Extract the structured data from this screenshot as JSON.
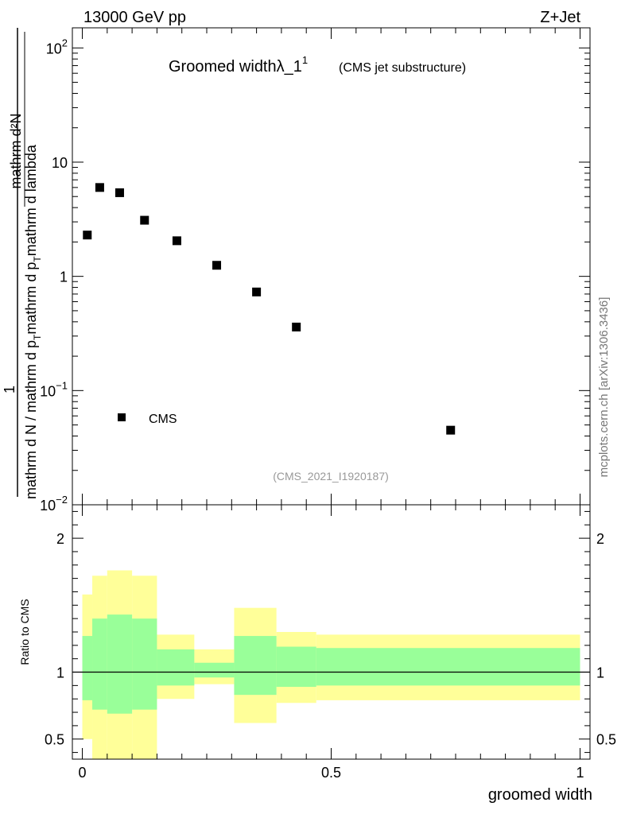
{
  "header": {
    "left_label": "13000 GeV pp",
    "right_label": "Z+Jet"
  },
  "side_label": "mcplots.cern.ch [arXiv:1306.3436]",
  "chart_data": [
    {
      "type": "scatter",
      "title": "Groomed widthλ_1",
      "title_superscript": "1",
      "subtitle": "(CMS jet substructure)",
      "analysis_label": "(CMS_2021_I1920187)",
      "yscale": "log",
      "ylim": [
        0.01,
        150
      ],
      "xlim": [
        -0.02,
        1.02
      ],
      "y_ticks": [
        {
          "value": 0.01,
          "base": "10",
          "exp": "−2"
        },
        {
          "value": 0.1,
          "base": "10",
          "exp": "−1"
        },
        {
          "value": 1,
          "base": "1",
          "exp": ""
        },
        {
          "value": 10,
          "base": "10",
          "exp": ""
        },
        {
          "value": 100,
          "base": "10",
          "exp": "2"
        }
      ],
      "ylabel_numerator": "mathrm d²N",
      "ylabel_denominator_line1": "mathrm d p",
      "ylabel_denominator_sub1": "T",
      "ylabel_denominator_line2": "mathrm d lambda",
      "ylabel_prefix_numerator": "1",
      "ylabel_prefix_denominator": "mathrm d N / mathrm d p",
      "ylabel_prefix_sub": "T",
      "ylabel_mid": "mathrm d p",
      "ylabel_mid_sub": "T",
      "series": [
        {
          "name": "CMS",
          "points": [
            {
              "x": 0.01,
              "y": 2.3
            },
            {
              "x": 0.035,
              "y": 6.0
            },
            {
              "x": 0.075,
              "y": 5.4
            },
            {
              "x": 0.125,
              "y": 3.1
            },
            {
              "x": 0.19,
              "y": 2.05
            },
            {
              "x": 0.27,
              "y": 1.25
            },
            {
              "x": 0.35,
              "y": 0.73
            },
            {
              "x": 0.43,
              "y": 0.36
            },
            {
              "x": 0.74,
              "y": 0.045
            }
          ]
        }
      ],
      "legend": {
        "label": "CMS",
        "placement": "bottom-left"
      }
    },
    {
      "type": "area",
      "ylabel": "Ratio to CMS",
      "xlabel": "groomed width",
      "xlim": [
        -0.02,
        1.02
      ],
      "ylim": [
        0.35,
        2.25
      ],
      "x_ticks": [
        {
          "value": 0,
          "label": "0"
        },
        {
          "value": 0.5,
          "label": "0.5"
        },
        {
          "value": 1,
          "label": "1"
        }
      ],
      "y_ticks": [
        {
          "value": 0.5,
          "label": "0.5"
        },
        {
          "value": 1,
          "label": "1"
        },
        {
          "value": 2,
          "label": "2"
        }
      ],
      "reference_line": 1,
      "colors": {
        "outer_band": "#ffff99",
        "inner_band": "#99ff99",
        "line": "#000000"
      },
      "bins": [
        {
          "x0": 0.0,
          "x1": 0.02,
          "outer": [
            0.5,
            1.58
          ],
          "inner": [
            0.79,
            1.27
          ]
        },
        {
          "x0": 0.02,
          "x1": 0.05,
          "outer": [
            0.3,
            1.72
          ],
          "inner": [
            0.72,
            1.4
          ]
        },
        {
          "x0": 0.05,
          "x1": 0.1,
          "outer": [
            0.3,
            1.76
          ],
          "inner": [
            0.69,
            1.43
          ]
        },
        {
          "x0": 0.1,
          "x1": 0.15,
          "outer": [
            0.3,
            1.72
          ],
          "inner": [
            0.72,
            1.4
          ]
        },
        {
          "x0": 0.15,
          "x1": 0.225,
          "outer": [
            0.8,
            1.28
          ],
          "inner": [
            0.9,
            1.17
          ]
        },
        {
          "x0": 0.225,
          "x1": 0.305,
          "outer": [
            0.91,
            1.17
          ],
          "inner": [
            0.96,
            1.07
          ]
        },
        {
          "x0": 0.305,
          "x1": 0.39,
          "outer": [
            0.62,
            1.48
          ],
          "inner": [
            0.83,
            1.27
          ]
        },
        {
          "x0": 0.39,
          "x1": 0.47,
          "outer": [
            0.77,
            1.3
          ],
          "inner": [
            0.89,
            1.19
          ]
        },
        {
          "x0": 0.47,
          "x1": 1.0,
          "outer": [
            0.79,
            1.28
          ],
          "inner": [
            0.9,
            1.18
          ]
        }
      ]
    }
  ]
}
